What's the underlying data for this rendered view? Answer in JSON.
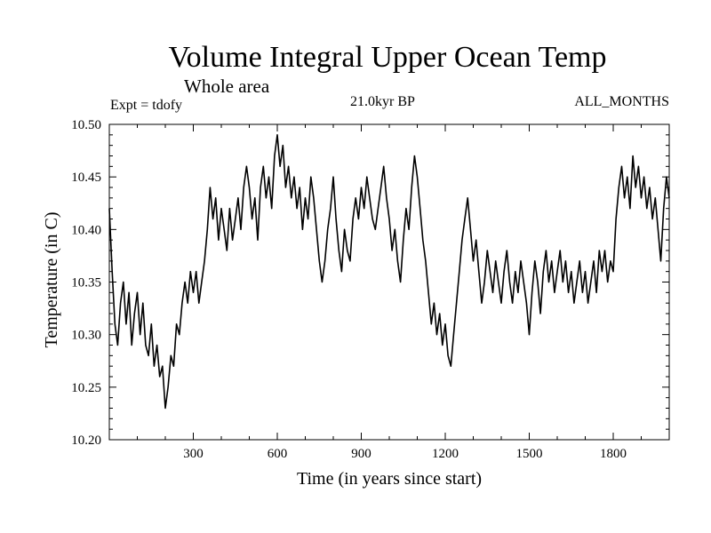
{
  "chart_data": {
    "type": "line",
    "title": "Volume Integral Upper Ocean Temp",
    "subtitle": "Whole area",
    "annotations": {
      "experiment": "Expt = tdofy",
      "period": "21.0kyr BP",
      "months": "ALL_MONTHS"
    },
    "xlabel": "Time (in years since start)",
    "ylabel": "Temperature (in C)",
    "xlim": [
      0,
      2000
    ],
    "ylim": [
      10.2,
      10.5
    ],
    "xticks": [
      300,
      600,
      900,
      1200,
      1500,
      1800
    ],
    "yticks": [
      "10.20",
      "10.25",
      "10.30",
      "10.35",
      "10.40",
      "10.45",
      "10.50"
    ],
    "grid": false,
    "legend": "none",
    "line_color": "#000000",
    "series": [
      {
        "x": [
          0,
          10,
          20,
          30,
          40,
          50,
          60,
          70,
          80,
          90,
          100,
          110,
          120,
          130,
          140,
          150,
          160,
          170,
          180,
          190,
          200,
          210,
          220,
          230,
          240,
          250,
          260,
          270,
          280,
          290,
          300,
          310,
          320,
          330,
          340,
          350,
          360,
          370,
          380,
          390,
          400,
          410,
          420,
          430,
          440,
          450,
          460,
          470,
          480,
          490,
          500,
          510,
          520,
          530,
          540,
          550,
          560,
          570,
          580,
          590,
          600,
          610,
          620,
          630,
          640,
          650,
          660,
          670,
          680,
          690,
          700,
          710,
          720,
          730,
          740,
          750,
          760,
          770,
          780,
          790,
          800,
          810,
          820,
          830,
          840,
          850,
          860,
          870,
          880,
          890,
          900,
          910,
          920,
          930,
          940,
          950,
          960,
          970,
          980,
          990,
          1000,
          1010,
          1020,
          1030,
          1040,
          1050,
          1060,
          1070,
          1080,
          1090,
          1100,
          1110,
          1120,
          1130,
          1140,
          1150,
          1160,
          1170,
          1180,
          1190,
          1200,
          1210,
          1220,
          1230,
          1240,
          1250,
          1260,
          1270,
          1280,
          1290,
          1300,
          1310,
          1320,
          1330,
          1340,
          1350,
          1360,
          1370,
          1380,
          1390,
          1400,
          1410,
          1420,
          1430,
          1440,
          1450,
          1460,
          1470,
          1480,
          1490,
          1500,
          1510,
          1520,
          1530,
          1540,
          1550,
          1560,
          1570,
          1580,
          1590,
          1600,
          1610,
          1620,
          1630,
          1640,
          1650,
          1660,
          1670,
          1680,
          1690,
          1700,
          1710,
          1720,
          1730,
          1740,
          1750,
          1760,
          1770,
          1780,
          1790,
          1800,
          1810,
          1820,
          1830,
          1840,
          1850,
          1860,
          1870,
          1880,
          1890,
          1900,
          1910,
          1920,
          1930,
          1940,
          1950,
          1960,
          1970,
          1980,
          1990,
          2000
        ],
        "y": [
          10.42,
          10.36,
          10.31,
          10.29,
          10.33,
          10.35,
          10.31,
          10.34,
          10.29,
          10.32,
          10.34,
          10.3,
          10.33,
          10.29,
          10.28,
          10.31,
          10.27,
          10.29,
          10.26,
          10.27,
          10.23,
          10.25,
          10.28,
          10.27,
          10.31,
          10.3,
          10.33,
          10.35,
          10.33,
          10.36,
          10.34,
          10.36,
          10.33,
          10.35,
          10.37,
          10.4,
          10.44,
          10.41,
          10.43,
          10.39,
          10.42,
          10.4,
          10.38,
          10.42,
          10.39,
          10.41,
          10.43,
          10.4,
          10.44,
          10.46,
          10.44,
          10.41,
          10.43,
          10.39,
          10.44,
          10.46,
          10.43,
          10.45,
          10.42,
          10.47,
          10.49,
          10.46,
          10.48,
          10.44,
          10.46,
          10.43,
          10.45,
          10.42,
          10.44,
          10.4,
          10.43,
          10.41,
          10.45,
          10.43,
          10.4,
          10.37,
          10.35,
          10.37,
          10.4,
          10.42,
          10.45,
          10.41,
          10.38,
          10.36,
          10.4,
          10.38,
          10.37,
          10.41,
          10.43,
          10.41,
          10.44,
          10.42,
          10.45,
          10.43,
          10.41,
          10.4,
          10.42,
          10.44,
          10.46,
          10.43,
          10.41,
          10.38,
          10.4,
          10.37,
          10.35,
          10.39,
          10.42,
          10.4,
          10.44,
          10.47,
          10.45,
          10.42,
          10.39,
          10.37,
          10.34,
          10.31,
          10.33,
          10.3,
          10.32,
          10.29,
          10.31,
          10.28,
          10.27,
          10.3,
          10.33,
          10.36,
          10.39,
          10.41,
          10.43,
          10.4,
          10.37,
          10.39,
          10.36,
          10.33,
          10.35,
          10.38,
          10.36,
          10.34,
          10.37,
          10.35,
          10.33,
          10.36,
          10.38,
          10.35,
          10.33,
          10.36,
          10.34,
          10.37,
          10.35,
          10.33,
          10.3,
          10.34,
          10.37,
          10.35,
          10.32,
          10.36,
          10.38,
          10.35,
          10.37,
          10.34,
          10.36,
          10.38,
          10.35,
          10.37,
          10.34,
          10.36,
          10.33,
          10.35,
          10.37,
          10.34,
          10.36,
          10.33,
          10.35,
          10.37,
          10.34,
          10.38,
          10.36,
          10.38,
          10.35,
          10.37,
          10.36,
          10.41,
          10.44,
          10.46,
          10.43,
          10.45,
          10.42,
          10.47,
          10.44,
          10.46,
          10.43,
          10.45,
          10.42,
          10.44,
          10.41,
          10.43,
          10.4,
          10.37,
          10.42,
          10.45,
          10.43
        ]
      }
    ]
  }
}
